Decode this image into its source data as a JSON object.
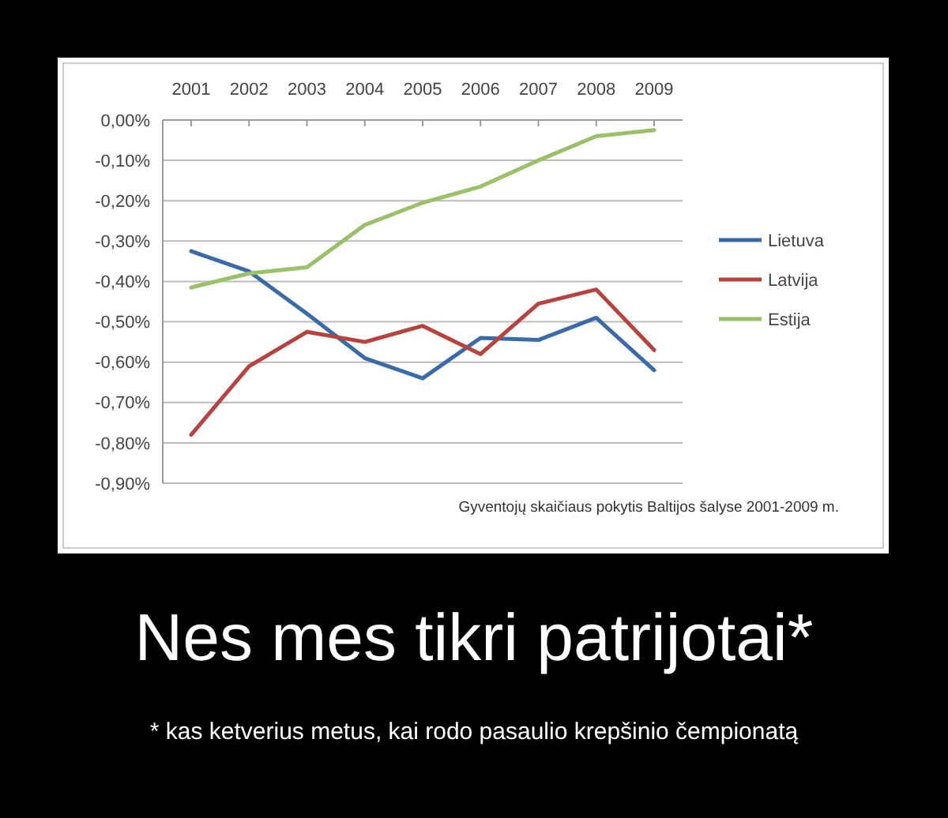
{
  "chart_data": {
    "type": "line",
    "title": "Nes mes tikri patrijotai*",
    "annotations": [
      "Gyventojų skaičiaus pokytis Baltijos šalyse 2001-2009 m.",
      "* kas ketverius metus, kai rodo pasaulio krepšinio čempionatą"
    ],
    "categories": [
      "2001",
      "2002",
      "2003",
      "2004",
      "2005",
      "2006",
      "2007",
      "2008",
      "2009"
    ],
    "series": [
      {
        "name": "Lietuva",
        "color": "#3a6aa8",
        "values": [
          -0.325,
          -0.375,
          -0.48,
          -0.59,
          -0.64,
          -0.54,
          -0.545,
          -0.49,
          -0.62
        ]
      },
      {
        "name": "Latvija",
        "color": "#b8423e",
        "values": [
          -0.78,
          -0.61,
          -0.525,
          -0.55,
          -0.51,
          -0.58,
          -0.455,
          -0.42,
          -0.57
        ]
      },
      {
        "name": "Estija",
        "color": "#9bc06a",
        "values": [
          -0.415,
          -0.38,
          -0.365,
          -0.26,
          -0.205,
          -0.165,
          -0.1,
          -0.04,
          -0.025
        ]
      }
    ],
    "ylim": [
      -0.9,
      0
    ],
    "yticks": [
      {
        "value": 0,
        "label": "0,00%"
      },
      {
        "value": -0.1,
        "label": "-0,10%"
      },
      {
        "value": -0.2,
        "label": "-0,20%"
      },
      {
        "value": -0.3,
        "label": "-0,30%"
      },
      {
        "value": -0.4,
        "label": "-0,40%"
      },
      {
        "value": -0.5,
        "label": "-0,50%"
      },
      {
        "value": -0.6,
        "label": "-0,60%"
      },
      {
        "value": -0.7,
        "label": "-0,70%"
      },
      {
        "value": -0.8,
        "label": "-0,80%"
      },
      {
        "value": -0.9,
        "label": "-0,90%"
      }
    ],
    "grid": "y",
    "legend": "right",
    "marker": "none",
    "line_style": "solid"
  }
}
